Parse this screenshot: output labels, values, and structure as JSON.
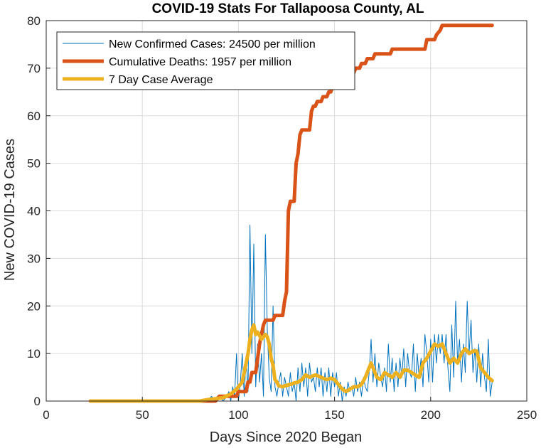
{
  "chart_data": {
    "type": "line",
    "title": "COVID-19 Stats For Tallapoosa County, AL",
    "xlabel": "Days Since 2020 Began",
    "ylabel": "New COVID-19 Cases",
    "xlim": [
      0,
      250
    ],
    "ylim": [
      0,
      80
    ],
    "xticks": [
      "0",
      "50",
      "100",
      "150",
      "200",
      "250"
    ],
    "yticks": [
      "0",
      "10",
      "20",
      "30",
      "40",
      "50",
      "60",
      "70",
      "80"
    ],
    "grid": true,
    "legend_position": "top-left",
    "series": [
      {
        "name": "New Confirmed Cases: 24500 per million",
        "color": "#0072BD",
        "style": "thin",
        "points": [
          [
            23,
            0
          ],
          [
            80,
            0
          ],
          [
            82,
            0
          ],
          [
            84,
            0
          ],
          [
            86,
            1
          ],
          [
            88,
            0
          ],
          [
            90,
            1
          ],
          [
            92,
            0
          ],
          [
            94,
            1
          ],
          [
            95,
            2
          ],
          [
            96,
            0
          ],
          [
            97,
            3
          ],
          [
            98,
            1
          ],
          [
            99,
            10
          ],
          [
            100,
            0
          ],
          [
            101,
            4
          ],
          [
            102,
            10
          ],
          [
            103,
            1
          ],
          [
            104,
            9
          ],
          [
            105,
            2
          ],
          [
            106,
            37
          ],
          [
            107,
            10
          ],
          [
            108,
            33
          ],
          [
            109,
            3
          ],
          [
            110,
            12
          ],
          [
            111,
            4
          ],
          [
            112,
            10
          ],
          [
            113,
            1
          ],
          [
            114,
            35
          ],
          [
            115,
            15
          ],
          [
            116,
            5
          ],
          [
            117,
            2
          ],
          [
            118,
            20
          ],
          [
            119,
            3
          ],
          [
            120,
            1
          ],
          [
            121,
            4
          ],
          [
            122,
            6
          ],
          [
            123,
            1
          ],
          [
            124,
            5
          ],
          [
            125,
            3
          ],
          [
            126,
            1
          ],
          [
            127,
            6
          ],
          [
            128,
            2
          ],
          [
            129,
            4
          ],
          [
            130,
            0
          ],
          [
            131,
            7
          ],
          [
            132,
            2
          ],
          [
            133,
            8
          ],
          [
            134,
            3
          ],
          [
            135,
            7
          ],
          [
            136,
            1
          ],
          [
            137,
            8
          ],
          [
            138,
            4
          ],
          [
            139,
            5
          ],
          [
            140,
            2
          ],
          [
            141,
            7
          ],
          [
            142,
            3
          ],
          [
            143,
            7
          ],
          [
            144,
            1
          ],
          [
            145,
            6
          ],
          [
            146,
            2
          ],
          [
            147,
            7
          ],
          [
            148,
            1
          ],
          [
            149,
            6
          ],
          [
            150,
            3
          ],
          [
            151,
            6
          ],
          [
            152,
            1
          ],
          [
            153,
            4
          ],
          [
            154,
            0
          ],
          [
            155,
            3
          ],
          [
            156,
            1
          ],
          [
            157,
            4
          ],
          [
            158,
            2
          ],
          [
            159,
            3
          ],
          [
            160,
            1
          ],
          [
            161,
            5
          ],
          [
            162,
            2
          ],
          [
            163,
            4
          ],
          [
            164,
            1
          ],
          [
            165,
            5
          ],
          [
            166,
            3
          ],
          [
            167,
            2
          ],
          [
            168,
            6
          ],
          [
            169,
            13
          ],
          [
            170,
            4
          ],
          [
            171,
            10
          ],
          [
            172,
            3
          ],
          [
            173,
            8
          ],
          [
            174,
            5
          ],
          [
            175,
            3
          ],
          [
            176,
            7
          ],
          [
            177,
            2
          ],
          [
            178,
            12
          ],
          [
            179,
            4
          ],
          [
            180,
            9
          ],
          [
            181,
            2
          ],
          [
            182,
            8
          ],
          [
            183,
            3
          ],
          [
            184,
            9
          ],
          [
            185,
            5
          ],
          [
            186,
            11
          ],
          [
            187,
            3
          ],
          [
            188,
            10
          ],
          [
            189,
            6
          ],
          [
            190,
            5
          ],
          [
            191,
            12
          ],
          [
            192,
            2
          ],
          [
            193,
            10
          ],
          [
            194,
            5
          ],
          [
            195,
            9
          ],
          [
            196,
            3
          ],
          [
            197,
            14
          ],
          [
            198,
            10
          ],
          [
            199,
            4
          ],
          [
            200,
            13
          ],
          [
            201,
            4
          ],
          [
            202,
            14
          ],
          [
            203,
            8
          ],
          [
            204,
            14
          ],
          [
            205,
            10
          ],
          [
            206,
            14
          ],
          [
            207,
            8
          ],
          [
            208,
            14
          ],
          [
            209,
            7
          ],
          [
            210,
            2
          ],
          [
            211,
            16
          ],
          [
            212,
            5
          ],
          [
            213,
            21
          ],
          [
            214,
            8
          ],
          [
            215,
            13
          ],
          [
            216,
            4
          ],
          [
            217,
            12
          ],
          [
            218,
            6
          ],
          [
            219,
            21
          ],
          [
            220,
            10
          ],
          [
            221,
            17
          ],
          [
            222,
            6
          ],
          [
            223,
            11
          ],
          [
            224,
            4
          ],
          [
            225,
            12
          ],
          [
            226,
            3
          ],
          [
            227,
            10
          ],
          [
            228,
            5
          ],
          [
            229,
            2
          ],
          [
            230,
            13
          ],
          [
            231,
            1
          ],
          [
            232,
            4
          ]
        ]
      },
      {
        "name": "Cumulative Deaths: 1957 per million",
        "color": "#D95319",
        "style": "thick",
        "points": [
          [
            23,
            0
          ],
          [
            88,
            0
          ],
          [
            90,
            1
          ],
          [
            99,
            1
          ],
          [
            100,
            2
          ],
          [
            104,
            2
          ],
          [
            105,
            4
          ],
          [
            106,
            4
          ],
          [
            107,
            6
          ],
          [
            109,
            6
          ],
          [
            110,
            9
          ],
          [
            111,
            12
          ],
          [
            112,
            14
          ],
          [
            113,
            16
          ],
          [
            114,
            17
          ],
          [
            118,
            17
          ],
          [
            119,
            18
          ],
          [
            123,
            18
          ],
          [
            124,
            21
          ],
          [
            125,
            23
          ],
          [
            126,
            40
          ],
          [
            127,
            42
          ],
          [
            129,
            42
          ],
          [
            130,
            50
          ],
          [
            131,
            52
          ],
          [
            132,
            56
          ],
          [
            133,
            57
          ],
          [
            137,
            57
          ],
          [
            138,
            61
          ],
          [
            139,
            62
          ],
          [
            140,
            62
          ],
          [
            141,
            63
          ],
          [
            143,
            63
          ],
          [
            144,
            64
          ],
          [
            146,
            64
          ],
          [
            147,
            65
          ],
          [
            148,
            65
          ],
          [
            149,
            66
          ],
          [
            150,
            66
          ],
          [
            153,
            66
          ],
          [
            154,
            67
          ],
          [
            155,
            67
          ],
          [
            156,
            68
          ],
          [
            158,
            68
          ],
          [
            159,
            69
          ],
          [
            160,
            69
          ],
          [
            161,
            70
          ],
          [
            163,
            70
          ],
          [
            164,
            71
          ],
          [
            166,
            71
          ],
          [
            167,
            72
          ],
          [
            170,
            72
          ],
          [
            171,
            73
          ],
          [
            179,
            73
          ],
          [
            180,
            74
          ],
          [
            197,
            74
          ],
          [
            198,
            76
          ],
          [
            202,
            76
          ],
          [
            203,
            77
          ],
          [
            205,
            78
          ],
          [
            206,
            79
          ],
          [
            232,
            79
          ]
        ]
      },
      {
        "name": "7 Day Case Average",
        "color": "#EDB120",
        "style": "thick",
        "points": [
          [
            23,
            0
          ],
          [
            80,
            0
          ],
          [
            84,
            0.3
          ],
          [
            88,
            0.5
          ],
          [
            92,
            0.7
          ],
          [
            96,
            1.5
          ],
          [
            99,
            2.5
          ],
          [
            102,
            4
          ],
          [
            104,
            8
          ],
          [
            105,
            10
          ],
          [
            106,
            13
          ],
          [
            107,
            15
          ],
          [
            108,
            16
          ],
          [
            109,
            14
          ],
          [
            110,
            14.5
          ],
          [
            112,
            13
          ],
          [
            114,
            14
          ],
          [
            115,
            13.5
          ],
          [
            116,
            12
          ],
          [
            117,
            9
          ],
          [
            118,
            7.5
          ],
          [
            119,
            4.5
          ],
          [
            120,
            4
          ],
          [
            121,
            3.2
          ],
          [
            123,
            3
          ],
          [
            125,
            3.3
          ],
          [
            127,
            3.5
          ],
          [
            129,
            3.8
          ],
          [
            131,
            4
          ],
          [
            133,
            4.5
          ],
          [
            135,
            5.5
          ],
          [
            137,
            5
          ],
          [
            140,
            5.5
          ],
          [
            143,
            5
          ],
          [
            146,
            4.5
          ],
          [
            148,
            4.8
          ],
          [
            150,
            4.5
          ],
          [
            152,
            3.5
          ],
          [
            154,
            2.5
          ],
          [
            156,
            2
          ],
          [
            158,
            2.5
          ],
          [
            160,
            3
          ],
          [
            162,
            3
          ],
          [
            164,
            3.5
          ],
          [
            166,
            5
          ],
          [
            168,
            7
          ],
          [
            169,
            8
          ],
          [
            170,
            7
          ],
          [
            172,
            5
          ],
          [
            174,
            4.5
          ],
          [
            176,
            6
          ],
          [
            178,
            5.5
          ],
          [
            180,
            5
          ],
          [
            182,
            6
          ],
          [
            184,
            5
          ],
          [
            186,
            6.5
          ],
          [
            188,
            6.5
          ],
          [
            190,
            6
          ],
          [
            192,
            5.5
          ],
          [
            194,
            5
          ],
          [
            196,
            8
          ],
          [
            198,
            9
          ],
          [
            200,
            10.5
          ],
          [
            202,
            12
          ],
          [
            204,
            11.5
          ],
          [
            206,
            12
          ],
          [
            208,
            10
          ],
          [
            210,
            8
          ],
          [
            212,
            9
          ],
          [
            214,
            8
          ],
          [
            216,
            10
          ],
          [
            218,
            11
          ],
          [
            220,
            10
          ],
          [
            222,
            10.5
          ],
          [
            224,
            10.5
          ],
          [
            226,
            7
          ],
          [
            228,
            6
          ],
          [
            230,
            5
          ],
          [
            232,
            4.3
          ]
        ]
      }
    ]
  }
}
